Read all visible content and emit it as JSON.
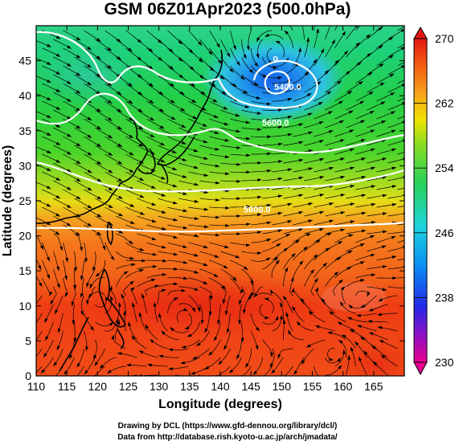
{
  "title": "GSM 06Z01Apr2023 (500.0hPa)",
  "credits": {
    "line1": "Drawing by DCL (https://www.gfd-dennou.org/library/dcl/)",
    "line2": "Data from http://database.rish.kyoto-u.ac.jp/arch/jmadata/"
  },
  "map": {
    "x_axis": {
      "label": "Longitude (degrees)",
      "range": [
        110,
        170
      ],
      "ticks": [
        110,
        115,
        120,
        125,
        130,
        135,
        140,
        145,
        150,
        155,
        160,
        165
      ]
    },
    "y_axis": {
      "label": "Latitude (degrees)",
      "range": [
        0,
        50
      ],
      "ticks": [
        0,
        5,
        10,
        15,
        20,
        25,
        30,
        35,
        40,
        45
      ]
    },
    "field": "temperature-like color shading (K) with geopotential height contours and wind streamlines",
    "low_center": {
      "symbol": "o",
      "lon": 149,
      "lat": 45.3
    },
    "contours": [
      {
        "label": "5400.0",
        "lon": 151,
        "lat": 41.3
      },
      {
        "label": "5600.0",
        "lon": 149,
        "lat": 36.2
      },
      {
        "label": "",
        "lon": 150,
        "lat": 30.2
      },
      {
        "label": "5800.0",
        "lon": 146,
        "lat": 23.8
      }
    ]
  },
  "colorbar": {
    "min": 230,
    "max": 270,
    "labels": [
      "270",
      "262",
      "254",
      "246",
      "238",
      "230"
    ],
    "colors": [
      "#e8008e",
      "#2428e6",
      "#0a8ff2",
      "#1fd4de",
      "#26d25a",
      "#86dc24",
      "#f0e200",
      "#f7a21d",
      "#f35a10",
      "#e11810"
    ]
  }
}
